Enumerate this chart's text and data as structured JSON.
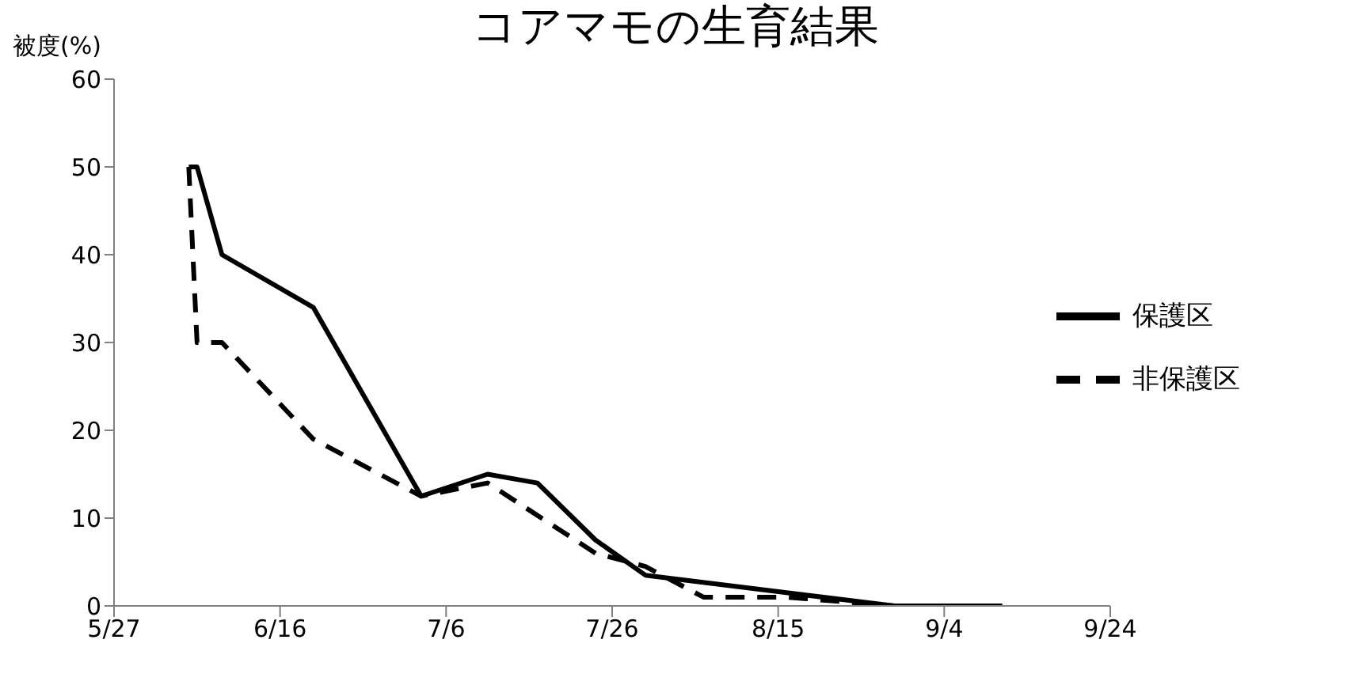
{
  "chart_data": {
    "type": "line",
    "title": "コアマモの生育結果",
    "ylabel": "被度(%)",
    "xlim": [
      "--05-27",
      "--09-24"
    ],
    "xticks": [
      {
        "value": "--05-27",
        "label": "5/27"
      },
      {
        "value": "--06-16",
        "label": "6/16"
      },
      {
        "value": "--07-06",
        "label": "7/6"
      },
      {
        "value": "--07-26",
        "label": "7/26"
      },
      {
        "value": "--08-15",
        "label": "8/15"
      },
      {
        "value": "--09-04",
        "label": "9/4"
      },
      {
        "value": "--09-24",
        "label": "9/24"
      }
    ],
    "ylim": [
      0,
      60
    ],
    "yticks": [
      0,
      10,
      20,
      30,
      40,
      50,
      60
    ],
    "grid": false,
    "legend": "right",
    "marker": "none",
    "series": [
      {
        "name": "保護区",
        "color": "#000000",
        "line_style": "solid",
        "x": [
          "--06-05",
          "--06-06",
          "--06-09",
          "--06-20",
          "--07-03",
          "--07-11",
          "--07-17",
          "--07-24",
          "--07-30",
          "--08-16",
          "--08-29",
          "--09-11"
        ],
        "values": [
          50,
          50,
          40,
          34,
          12.5,
          15,
          14,
          7.5,
          3.5,
          1.5,
          0,
          0
        ]
      },
      {
        "name": "非保護区",
        "color": "#000000",
        "line_style": "dashed",
        "x": [
          "--06-05",
          "--06-06",
          "--06-09",
          "--06-20",
          "--07-03",
          "--07-11",
          "--07-24",
          "--07-30",
          "--08-06",
          "--08-16",
          "--08-29",
          "--09-11"
        ],
        "values": [
          50,
          30,
          30,
          19,
          12.5,
          14,
          6,
          4.5,
          1,
          1,
          0,
          0
        ]
      }
    ]
  }
}
